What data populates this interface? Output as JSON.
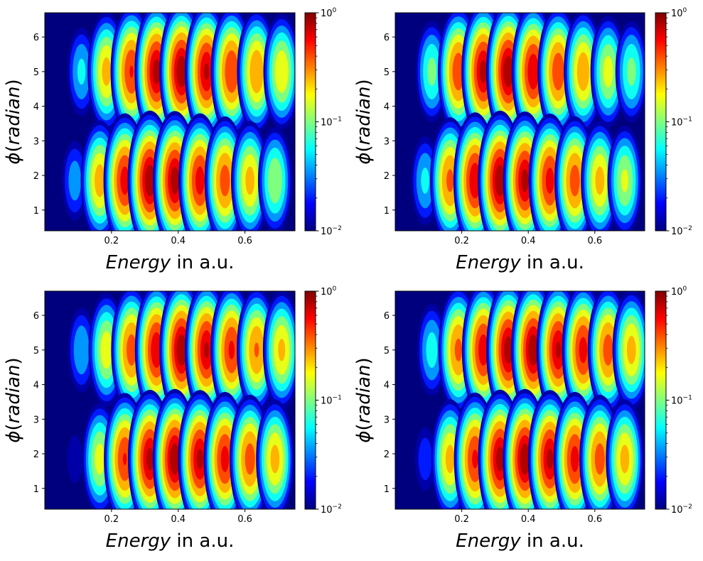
{
  "figure": {
    "colormap": "jet",
    "colors": {
      "background": "#ffffff",
      "plot_bg": "#00007f",
      "jet_stops": [
        "#00007f",
        "#0000ff",
        "#007fff",
        "#00ffff",
        "#7fff7f",
        "#ffff00",
        "#ff7f00",
        "#ff0000",
        "#7f0000"
      ]
    }
  },
  "chart_data": [
    {
      "type": "heatmap",
      "panel": "top-left",
      "xlabel_italic": "Energy",
      "xlabel_rest": " in a.u.",
      "ylabel_symbol": "ϕ",
      "ylabel_paren_open": "(",
      "ylabel_word": "radian",
      "ylabel_paren_close": ")",
      "xlim": [
        0.0,
        0.75
      ],
      "ylim": [
        0.4,
        6.7
      ],
      "xticks": [
        0.2,
        0.4,
        0.6
      ],
      "xtick_labels": [
        "0.2",
        "0.4",
        "0.6"
      ],
      "yticks": [
        1,
        2,
        3,
        4,
        5,
        6
      ],
      "ytick_labels": [
        "1",
        "2",
        "3",
        "4",
        "5",
        "6"
      ],
      "colorbar": {
        "scale": "log",
        "range": [
          0.01,
          1
        ],
        "tick_base": "10",
        "tick_exponents": [
          "0",
          "−1",
          "−2"
        ]
      },
      "bands": [
        {
          "center": 5.0,
          "peaks": [
            0.11,
            0.185,
            0.26,
            0.335,
            0.41,
            0.485,
            0.56,
            0.635,
            0.71
          ],
          "intensity": [
            0.07,
            0.3,
            0.62,
            0.92,
            1.0,
            0.85,
            0.6,
            0.38,
            0.24
          ]
        },
        {
          "center": 1.85,
          "peaks": [
            0.09,
            0.165,
            0.24,
            0.315,
            0.39,
            0.465,
            0.54,
            0.615,
            0.69
          ],
          "intensity": [
            0.05,
            0.32,
            0.72,
            1.0,
            0.95,
            0.72,
            0.5,
            0.3,
            0.16
          ]
        }
      ]
    },
    {
      "type": "heatmap",
      "panel": "top-right",
      "xlabel_italic": "Energy",
      "xlabel_rest": " in a.u.",
      "ylabel_symbol": "ϕ",
      "ylabel_paren_open": "(",
      "ylabel_word": "radian",
      "ylabel_paren_close": ")",
      "xlim": [
        0.0,
        0.75
      ],
      "ylim": [
        0.4,
        6.7
      ],
      "xticks": [
        0.2,
        0.4,
        0.6
      ],
      "xtick_labels": [
        "0.2",
        "0.4",
        "0.6"
      ],
      "yticks": [
        1,
        2,
        3,
        4,
        5,
        6
      ],
      "ytick_labels": [
        "1",
        "2",
        "3",
        "4",
        "5",
        "6"
      ],
      "colorbar": {
        "scale": "log",
        "range": [
          0.01,
          1
        ],
        "tick_base": "10",
        "tick_exponents": [
          "0",
          "−1",
          "−2"
        ]
      },
      "bands": [
        {
          "center": 5.0,
          "peaks": [
            0.04,
            0.11,
            0.19,
            0.265,
            0.34,
            0.415,
            0.49,
            0.565,
            0.64,
            0.71
          ],
          "intensity": [
            0.01,
            0.12,
            0.55,
            0.9,
            1.0,
            0.8,
            0.55,
            0.35,
            0.2,
            0.12
          ]
        },
        {
          "center": 1.85,
          "peaks": [
            0.09,
            0.165,
            0.24,
            0.315,
            0.39,
            0.465,
            0.54,
            0.615,
            0.69
          ],
          "intensity": [
            0.07,
            0.45,
            0.8,
            1.0,
            0.9,
            0.7,
            0.5,
            0.3,
            0.18
          ]
        }
      ]
    },
    {
      "type": "heatmap",
      "panel": "bottom-left",
      "xlabel_italic": "Energy",
      "xlabel_rest": " in a.u.",
      "ylabel_symbol": "ϕ",
      "ylabel_paren_open": "(",
      "ylabel_word": "radian",
      "ylabel_paren_close": ")",
      "xlim": [
        0.0,
        0.75
      ],
      "ylim": [
        0.4,
        6.7
      ],
      "xticks": [
        0.2,
        0.4,
        0.6
      ],
      "xtick_labels": [
        "0.2",
        "0.4",
        "0.6"
      ],
      "yticks": [
        1,
        2,
        3,
        4,
        5,
        6
      ],
      "ytick_labels": [
        "1",
        "2",
        "3",
        "4",
        "5",
        "6"
      ],
      "colorbar": {
        "scale": "log",
        "range": [
          0.01,
          1
        ],
        "tick_base": "10",
        "tick_exponents": [
          "0",
          "−1",
          "−2"
        ]
      },
      "bands": [
        {
          "center": 5.0,
          "peaks": [
            0.11,
            0.185,
            0.26,
            0.335,
            0.41,
            0.485,
            0.56,
            0.635,
            0.71
          ],
          "intensity": [
            0.06,
            0.22,
            0.5,
            0.8,
            1.0,
            0.85,
            0.65,
            0.42,
            0.28
          ]
        },
        {
          "center": 1.85,
          "peaks": [
            0.09,
            0.165,
            0.24,
            0.315,
            0.39,
            0.465,
            0.54,
            0.615,
            0.69
          ],
          "intensity": [
            0.02,
            0.2,
            0.62,
            0.9,
            1.0,
            0.88,
            0.7,
            0.5,
            0.3
          ]
        }
      ]
    },
    {
      "type": "heatmap",
      "panel": "bottom-right",
      "xlabel_italic": "Energy",
      "xlabel_rest": " in a.u.",
      "ylabel_symbol": "ϕ",
      "ylabel_paren_open": "(",
      "ylabel_word": "radian",
      "ylabel_paren_close": ")",
      "xlim": [
        0.0,
        0.75
      ],
      "ylim": [
        0.4,
        6.7
      ],
      "xticks": [
        0.2,
        0.4,
        0.6
      ],
      "xtick_labels": [
        "0.2",
        "0.4",
        "0.6"
      ],
      "yticks": [
        1,
        2,
        3,
        4,
        5,
        6
      ],
      "ytick_labels": [
        "1",
        "2",
        "3",
        "4",
        "5",
        "6"
      ],
      "colorbar": {
        "scale": "log",
        "range": [
          0.01,
          1
        ],
        "tick_base": "10",
        "tick_exponents": [
          "0",
          "−1",
          "−2"
        ]
      },
      "bands": [
        {
          "center": 5.0,
          "peaks": [
            0.11,
            0.19,
            0.265,
            0.34,
            0.415,
            0.49,
            0.565,
            0.64,
            0.71
          ],
          "intensity": [
            0.08,
            0.45,
            0.75,
            0.95,
            1.0,
            0.85,
            0.7,
            0.5,
            0.3
          ]
        },
        {
          "center": 1.85,
          "peaks": [
            0.09,
            0.165,
            0.24,
            0.315,
            0.39,
            0.465,
            0.54,
            0.615,
            0.69
          ],
          "intensity": [
            0.03,
            0.3,
            0.65,
            0.92,
            1.0,
            0.88,
            0.7,
            0.5,
            0.3
          ]
        }
      ]
    }
  ]
}
